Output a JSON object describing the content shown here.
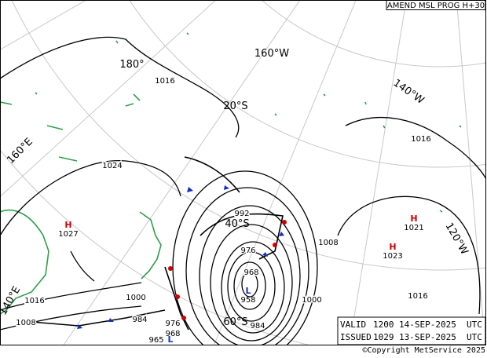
{
  "header": {
    "title": "AMEND MSL PROG H+30"
  },
  "graticule": {
    "lon_180": "180°",
    "lon_160w": "160°W",
    "lon_140w": "140°W",
    "lon_120w": "120°W",
    "lon_160e": "160°E",
    "lon_140e": "140°E",
    "lat_20s": "20°S",
    "lat_40s": "40°S",
    "lat_60s": "60°S"
  },
  "isobars": [
    1016,
    1024,
    992,
    976,
    968,
    984,
    1008,
    1000,
    1016,
    1016,
    1000,
    984,
    976,
    968,
    1016,
    1008
  ],
  "centers": [
    {
      "kind": "H",
      "pressure": 1027
    },
    {
      "kind": "H",
      "pressure": 1021
    },
    {
      "kind": "H",
      "pressure": 1023
    },
    {
      "kind": "L",
      "pressure": 958
    },
    {
      "kind": "L",
      "pressure": 965
    }
  ],
  "footer": {
    "valid": {
      "label": "VALID",
      "time": "1200",
      "date": "14-SEP-2025",
      "zone": "UTC"
    },
    "issued": {
      "label": "ISSUED",
      "time": "1029",
      "date": "13-SEP-2025",
      "zone": "UTC"
    },
    "copyright": "©Copyright MetService 2025"
  }
}
